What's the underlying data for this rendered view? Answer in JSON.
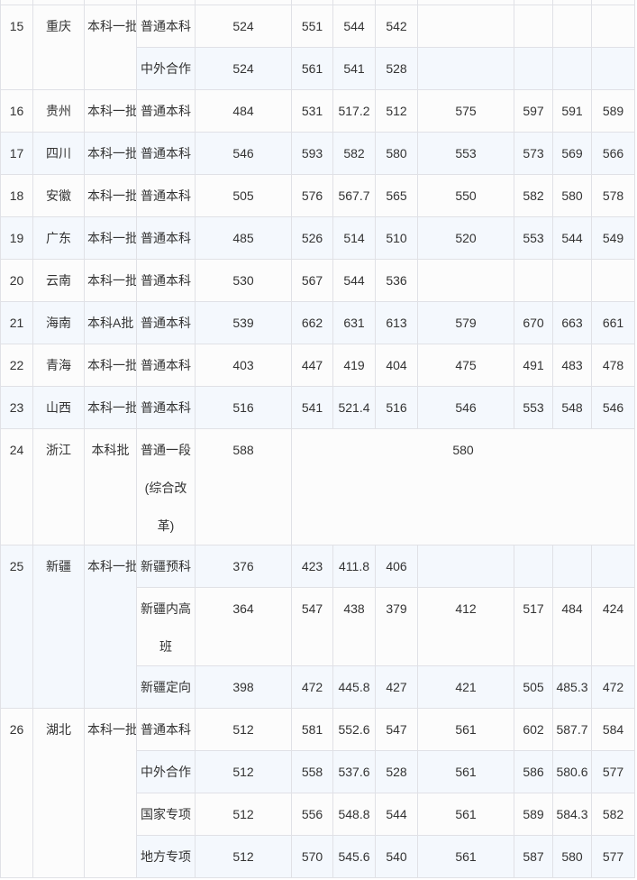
{
  "page": {
    "background": "#ffffff"
  },
  "colors": {
    "row_white": "#fcfcfc",
    "row_blue": "#f4f8fd",
    "border": "#e0e1e6",
    "text": "#333333"
  },
  "table": {
    "groups": [
      {
        "index": "15",
        "province": "重庆",
        "batch": "本科一批",
        "rows": [
          {
            "type": "普通本科",
            "values": [
              "524",
              "551",
              "544",
              "542",
              "",
              "",
              "",
              ""
            ]
          },
          {
            "type": "中外合作",
            "values": [
              "524",
              "561",
              "541",
              "528",
              "",
              "",
              "",
              ""
            ]
          }
        ]
      },
      {
        "index": "16",
        "province": "贵州",
        "batch": "本科一批",
        "rows": [
          {
            "type": "普通本科",
            "values": [
              "484",
              "531",
              "517.2",
              "512",
              "575",
              "597",
              "591",
              "589"
            ]
          }
        ]
      },
      {
        "index": "17",
        "province": "四川",
        "batch": "本科一批",
        "rows": [
          {
            "type": "普通本科",
            "values": [
              "546",
              "593",
              "582",
              "580",
              "553",
              "573",
              "569",
              "566"
            ]
          }
        ]
      },
      {
        "index": "18",
        "province": "安徽",
        "batch": "本科一批",
        "rows": [
          {
            "type": "普通本科",
            "values": [
              "505",
              "576",
              "567.7",
              "565",
              "550",
              "582",
              "580",
              "578"
            ]
          }
        ]
      },
      {
        "index": "19",
        "province": "广东",
        "batch": "本科一批",
        "rows": [
          {
            "type": "普通本科",
            "values": [
              "485",
              "526",
              "514",
              "510",
              "520",
              "553",
              "544",
              "549"
            ]
          }
        ]
      },
      {
        "index": "20",
        "province": "云南",
        "batch": "本科一批",
        "rows": [
          {
            "type": "普通本科",
            "values": [
              "530",
              "567",
              "544",
              "536",
              "",
              "",
              "",
              ""
            ]
          }
        ]
      },
      {
        "index": "21",
        "province": "海南",
        "batch": "本科A批",
        "rows": [
          {
            "type": "普通本科",
            "values": [
              "539",
              "662",
              "631",
              "613",
              "579",
              "670",
              "663",
              "661"
            ]
          }
        ]
      },
      {
        "index": "22",
        "province": "青海",
        "batch": "本科一批",
        "rows": [
          {
            "type": "普通本科",
            "values": [
              "403",
              "447",
              "419",
              "404",
              "475",
              "491",
              "483",
              "478"
            ]
          }
        ]
      },
      {
        "index": "23",
        "province": "山西",
        "batch": "本科一批",
        "rows": [
          {
            "type": "普通本科",
            "values": [
              "516",
              "541",
              "521.4",
              "516",
              "546",
              "553",
              "548",
              "546"
            ]
          }
        ]
      },
      {
        "index": "24",
        "province": "浙江",
        "batch": "本科批",
        "rows": [
          {
            "type": "普通一段\n(综合改革)",
            "values": [
              "588"
            ],
            "merged_value": "580"
          }
        ]
      },
      {
        "index": "25",
        "province": "新疆",
        "batch": "本科一批",
        "rows": [
          {
            "type": "新疆预科",
            "values": [
              "376",
              "423",
              "411.8",
              "406",
              "",
              "",
              "",
              ""
            ]
          },
          {
            "type": "新疆内高班",
            "values": [
              "364",
              "547",
              "438",
              "379",
              "412",
              "517",
              "484",
              "424"
            ]
          },
          {
            "type": "新疆定向",
            "values": [
              "398",
              "472",
              "445.8",
              "427",
              "421",
              "505",
              "485.3",
              "472"
            ]
          }
        ]
      },
      {
        "index": "26",
        "province": "湖北",
        "batch": "本科一批",
        "rows": [
          {
            "type": "普通本科",
            "values": [
              "512",
              "581",
              "552.6",
              "547",
              "561",
              "602",
              "587.7",
              "584"
            ]
          },
          {
            "type": "中外合作",
            "values": [
              "512",
              "558",
              "537.6",
              "528",
              "561",
              "586",
              "580.6",
              "577"
            ]
          },
          {
            "type": "国家专项",
            "values": [
              "512",
              "556",
              "548.8",
              "544",
              "561",
              "589",
              "584.3",
              "582"
            ]
          },
          {
            "type": "地方专项",
            "values": [
              "512",
              "570",
              "545.6",
              "540",
              "561",
              "587",
              "580",
              "577"
            ]
          }
        ]
      }
    ]
  }
}
